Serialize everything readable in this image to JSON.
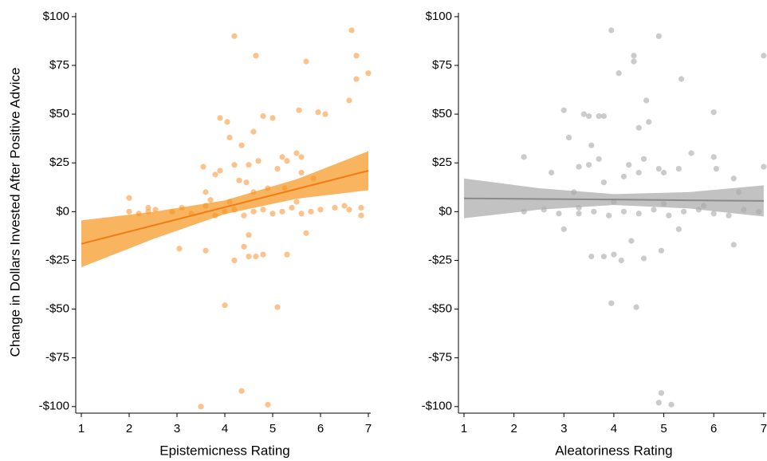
{
  "chart_data": [
    {
      "type": "scatter",
      "y_label": "Change in Dollars Invested After Positive Advice",
      "x_label": "Epistemicness Rating",
      "xlim": [
        0.9,
        7.05
      ],
      "ylim": [
        -105,
        102
      ],
      "xticks": [
        1,
        2,
        3,
        4,
        5,
        6,
        7
      ],
      "yticks": [
        {
          "value": 100,
          "label": "$100"
        },
        {
          "value": 75,
          "label": "$75"
        },
        {
          "value": 50,
          "label": "$50"
        },
        {
          "value": 25,
          "label": "$25"
        },
        {
          "value": 0,
          "label": "$0"
        },
        {
          "value": -25,
          "label": "-$25"
        },
        {
          "value": -50,
          "label": "-$50"
        },
        {
          "value": -75,
          "label": "-$75"
        },
        {
          "value": -100,
          "label": "-$100"
        }
      ],
      "color": "#f9a95a",
      "x": [
        4.2,
        4.65,
        5.7,
        6.65,
        6.75,
        6.75,
        7,
        6.6,
        5.55,
        5.95,
        6.1,
        3.9,
        4.8,
        5,
        4.05,
        4.6,
        4.1,
        4.35,
        5.5,
        5.6,
        5.2,
        5.3,
        4.7,
        4.5,
        4.2,
        3.55,
        5.1,
        5.6,
        3.8,
        3.9,
        4.3,
        4.45,
        5.85,
        4.9,
        5.25,
        3.6,
        4.6,
        2,
        2.55,
        2.9,
        3.1,
        3.3,
        3.6,
        3.8,
        4,
        4.2,
        4.4,
        4.6,
        4.8,
        5,
        5.2,
        5.4,
        5.6,
        5.8,
        6,
        6.3,
        6.6,
        6.85,
        2.4,
        2.2,
        3.05,
        3.6,
        4.2,
        4.4,
        4.5,
        4.65,
        4.8,
        5.3,
        5.7,
        4.5,
        4,
        5.1,
        3.5,
        4.35,
        4.9,
        2,
        2.4,
        3.7,
        4.1,
        5.5,
        6.5,
        6.85
      ],
      "values": [
        90,
        80,
        77,
        93,
        80,
        68,
        71,
        57,
        52,
        51,
        50,
        48,
        49,
        48,
        46,
        41,
        38,
        34,
        30,
        28,
        28,
        26,
        26,
        24,
        24,
        23,
        22,
        20,
        19,
        21,
        16,
        15,
        17,
        12,
        12,
        10,
        10,
        7,
        1,
        0,
        2,
        -1,
        3,
        -2,
        0,
        1,
        -2,
        0,
        1,
        -1,
        0,
        2,
        -1,
        0,
        1,
        2,
        1,
        -2,
        0,
        -1,
        -19,
        -20,
        -25,
        -18,
        -23,
        -23,
        -22,
        -22,
        -11,
        -12,
        -48,
        -49,
        -100,
        -92,
        -99,
        0,
        2,
        6,
        5,
        5,
        3,
        2
      ],
      "fit": {
        "x": [
          1,
          2.5,
          4,
          5.5,
          7
        ],
        "values": [
          -16.5,
          -7.1,
          2.25,
          11.6,
          21
        ],
        "lower": [
          -28.5,
          -14.1,
          -1.25,
          6.6,
          11
        ],
        "upper": [
          -4.5,
          -0.1,
          5.75,
          16.6,
          31
        ],
        "color": "#f07d14",
        "band_color": "#f7941d"
      }
    },
    {
      "type": "scatter",
      "x_label": "Aleatoriness Rating",
      "xlim": [
        0.9,
        7.05
      ],
      "ylim": [
        -105,
        102
      ],
      "xticks": [
        1,
        2,
        3,
        4,
        5,
        6,
        7
      ],
      "yticks": [
        {
          "value": 100,
          "label": "$100"
        },
        {
          "value": 75,
          "label": "$75"
        },
        {
          "value": 50,
          "label": "$50"
        },
        {
          "value": 25,
          "label": "$25"
        },
        {
          "value": 0,
          "label": "$0"
        },
        {
          "value": -25,
          "label": "-$25"
        },
        {
          "value": -50,
          "label": "-$50"
        },
        {
          "value": -75,
          "label": "-$75"
        },
        {
          "value": -100,
          "label": "-$100"
        }
      ],
      "color": "#b5b5b5",
      "x": [
        3.95,
        4.4,
        4.4,
        4.1,
        4.9,
        5.35,
        7,
        3,
        3.4,
        3.5,
        3.7,
        3.8,
        4.65,
        4.7,
        6,
        4.5,
        3.1,
        3.55,
        2.2,
        3.7,
        4.6,
        5.55,
        6,
        6.05,
        7,
        3.5,
        3.3,
        4.3,
        4.9,
        5,
        5.3,
        4.2,
        4.5,
        2.75,
        3.8,
        6.4,
        3.2,
        6.5,
        2.2,
        2.6,
        2.9,
        3.3,
        3.6,
        3.9,
        4.2,
        4.5,
        4.8,
        5.1,
        5.4,
        5.7,
        6,
        6.3,
        6.6,
        6.9,
        3,
        3.55,
        3.8,
        4,
        4.15,
        4.35,
        4.6,
        4.95,
        5.3,
        3.95,
        4.45,
        6.4,
        4.9,
        4.95,
        5.15,
        3.3,
        4,
        5,
        5.8
      ],
      "values": [
        93,
        80,
        77,
        71,
        90,
        68,
        80,
        52,
        50,
        49,
        49,
        49,
        57,
        46,
        51,
        43,
        38,
        34,
        28,
        27,
        27,
        30,
        28,
        22,
        23,
        24,
        23,
        24,
        22,
        20,
        22,
        18,
        20,
        20,
        15,
        17,
        10,
        10,
        0,
        1,
        -1,
        2,
        0,
        -2,
        0,
        -1,
        1,
        -2,
        0,
        1,
        -1,
        -2,
        1,
        0,
        -9,
        -23,
        -23,
        -22,
        -25,
        -15,
        -24,
        -20,
        -9,
        -47,
        -49,
        -17,
        -98,
        -93,
        -99,
        -1,
        5,
        4,
        3
      ],
      "fit": {
        "x": [
          1,
          2.5,
          4,
          5.5,
          7
        ],
        "values": [
          6.8,
          6.5,
          6.2,
          5.8,
          5.5
        ],
        "lower": [
          -3.4,
          1,
          3.4,
          1.6,
          -2.5
        ],
        "upper": [
          17,
          12,
          9,
          10,
          13.5
        ],
        "color": "#8a8a8a",
        "band_color": "#a8a8a8"
      }
    }
  ]
}
